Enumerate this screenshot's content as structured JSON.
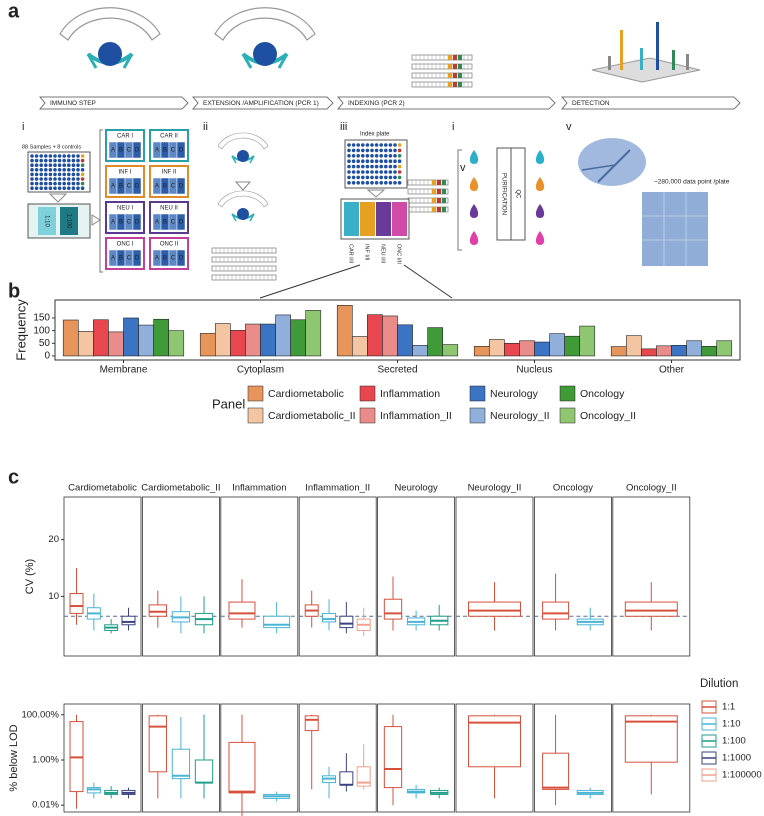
{
  "diagram": {
    "panel_labels": [
      "a",
      "b",
      "c"
    ],
    "steps": [
      "IMMUNO STEP",
      "EXTENSION /AMPLIFICATION (PCR 1)",
      "INDEXING (PCR 2)",
      "DETECTION"
    ],
    "roman": [
      "i",
      "ii",
      "iii",
      "i",
      "v",
      "v"
    ],
    "sample_plate": "88 Samples + 8 controls",
    "dilution_strip": [
      "1:10",
      "1:100"
    ],
    "plates": [
      "CAR I",
      "CAR II",
      "INF I",
      "INF II",
      "NEU I",
      "NEU II",
      "ONC I",
      "ONC II"
    ],
    "wells": [
      "A",
      "B",
      "C",
      "D"
    ],
    "index_plate": "Index plate",
    "index_labels": [
      "CAR I/II",
      "INF I/II",
      "NEU I/II",
      "ONC I/II"
    ],
    "qc": "QC",
    "purification": "PURIFICATION",
    "data_note": "~280,000 data point /plate"
  },
  "chart_data": [
    {
      "type": "bar",
      "ylabel": "Frequency",
      "legend_title": "Panel",
      "categories": [
        "Membrane",
        "Cytoplasm",
        "Secreted",
        "Nucleus",
        "Other"
      ],
      "ylim": [
        -16,
        221
      ],
      "yticks": [
        0,
        50,
        100,
        150
      ],
      "series": [
        {
          "name": "Cardiometabolic",
          "color": "#e8955c",
          "values": [
            142,
            89,
            200,
            38,
            37
          ]
        },
        {
          "name": "Cardiometabolic_II",
          "color": "#f3c5a3",
          "values": [
            97,
            128,
            77,
            65,
            80
          ]
        },
        {
          "name": "Inflammation",
          "color": "#e9474f",
          "values": [
            143,
            101,
            163,
            50,
            28
          ]
        },
        {
          "name": "Inflammation_II",
          "color": "#ea8c8a",
          "values": [
            95,
            126,
            158,
            60,
            40
          ]
        },
        {
          "name": "Neurology",
          "color": "#3b74c3",
          "values": [
            150,
            126,
            123,
            55,
            42
          ]
        },
        {
          "name": "Neurology_II",
          "color": "#90b0db",
          "values": [
            122,
            162,
            42,
            88,
            60
          ]
        },
        {
          "name": "Oncology",
          "color": "#409a38",
          "values": [
            145,
            143,
            112,
            78,
            38
          ]
        },
        {
          "name": "Oncology_II",
          "color": "#8fc672",
          "values": [
            100,
            180,
            45,
            118,
            60
          ]
        }
      ]
    },
    {
      "type": "box",
      "ylabel": "CV (%)",
      "facets": [
        "Cardiometabolic",
        "Cardiometabolic_II",
        "Inflammation",
        "Inflammation_II",
        "Neurology",
        "Neurology_II",
        "Oncology",
        "Oncology_II"
      ],
      "ylim": [
        -0.5,
        27.5
      ],
      "yticks": [
        10,
        20
      ],
      "reference_line": 6.5,
      "series": [
        {
          "color": "#d6503c",
          "boxes": [
            [
              5,
              7,
              8.3,
              10.5,
              15
            ],
            [
              4.5,
              6.5,
              7.3,
              8.5,
              11
            ],
            [
              4.5,
              6,
              7,
              9,
              13
            ],
            [
              4.5,
              6.5,
              7.5,
              8.5,
              11
            ],
            [
              4,
              6,
              7,
              9.5,
              13.5
            ],
            [
              4,
              6.5,
              7.5,
              9,
              12.5
            ],
            [
              4,
              6,
              7,
              9,
              14
            ],
            [
              4,
              6.5,
              7.5,
              9,
              12.5
            ]
          ]
        },
        {
          "color": "#49b4d4",
          "boxes": [
            [
              4,
              6,
              7,
              8,
              10.5
            ],
            [
              3.5,
              5.5,
              6.3,
              7.3,
              10
            ],
            [
              3.5,
              4.5,
              5,
              6.5,
              9
            ],
            [
              4,
              5.5,
              6,
              7,
              9.5
            ],
            [
              4,
              5,
              5.5,
              6.2,
              7.5
            ],
            null,
            [
              4,
              5,
              5.5,
              6,
              8
            ],
            null
          ]
        },
        {
          "color": "#1f9e89",
          "boxes": [
            [
              3.5,
              4,
              4.5,
              5,
              6
            ],
            [
              3.5,
              5,
              6,
              7,
              10
            ],
            null,
            null,
            [
              4,
              5,
              5.7,
              6.5,
              8.5
            ],
            null,
            null,
            null
          ]
        },
        {
          "color": "#3a4380",
          "boxes": [
            [
              4,
              5,
              5.5,
              6.5,
              8
            ],
            null,
            null,
            [
              3.5,
              4.5,
              5.2,
              6.5,
              9
            ],
            null,
            null,
            null,
            null
          ]
        },
        {
          "color": "#f0a090",
          "boxes": [
            null,
            null,
            null,
            [
              3,
              4,
              5,
              6,
              8
            ],
            null,
            null,
            null,
            null
          ]
        }
      ]
    },
    {
      "type": "box",
      "ylabel": "% below LOD",
      "log_scale": true,
      "legend_title": "Dilution",
      "ylim": [
        0.005,
        300
      ],
      "yticks": [
        {
          "value": 0.01,
          "label": "0.01%"
        },
        {
          "value": 1,
          "label": "1.00%"
        },
        {
          "value": 100,
          "label": "100.00%"
        }
      ],
      "series": [
        {
          "name": "1:1",
          "color": "#d6503c",
          "boxes": [
            [
              0.007,
              0.04,
              1.3,
              50,
              100
            ],
            [
              0.02,
              0.3,
              30,
              90,
              100
            ],
            [
              0.003,
              0.035,
              0.04,
              6,
              100
            ],
            [
              0.05,
              20,
              60,
              90,
              100
            ],
            [
              0.01,
              0.06,
              0.4,
              30,
              100
            ],
            [
              0.02,
              0.5,
              45,
              90,
              100
            ],
            [
              0.01,
              0.05,
              0.06,
              2,
              100
            ],
            [
              0.03,
              0.8,
              50,
              90,
              100
            ]
          ]
        },
        {
          "name": "1:10",
          "color": "#49b4d4",
          "boxes": [
            [
              0.02,
              0.035,
              0.05,
              0.06,
              0.1
            ],
            [
              0.02,
              0.15,
              0.2,
              3,
              80
            ],
            [
              0.015,
              0.02,
              0.025,
              0.03,
              0.04
            ],
            [
              0.02,
              0.1,
              0.15,
              0.2,
              0.5
            ],
            [
              0.02,
              0.035,
              0.04,
              0.05,
              0.08
            ],
            null,
            [
              0.02,
              0.03,
              0.035,
              0.045,
              0.06
            ],
            null
          ]
        },
        {
          "name": "1:100",
          "color": "#1f9e89",
          "boxes": [
            [
              0.02,
              0.03,
              0.035,
              0.045,
              0.07
            ],
            [
              0.02,
              0.1,
              0.1,
              1,
              100
            ],
            null,
            null,
            [
              0.02,
              0.03,
              0.035,
              0.045,
              0.06
            ],
            null,
            null,
            null
          ]
        },
        {
          "name": "1:1000",
          "color": "#3a4380",
          "boxes": [
            [
              0.02,
              0.03,
              0.035,
              0.045,
              0.06
            ],
            null,
            null,
            [
              0.04,
              0.08,
              0.08,
              0.3,
              2
            ],
            null,
            null,
            null,
            null
          ]
        },
        {
          "name": "1:100000",
          "color": "#f0a090",
          "boxes": [
            null,
            null,
            null,
            [
              0.05,
              0.07,
              0.1,
              0.5,
              5
            ],
            null,
            null,
            null,
            null
          ]
        }
      ]
    }
  ]
}
